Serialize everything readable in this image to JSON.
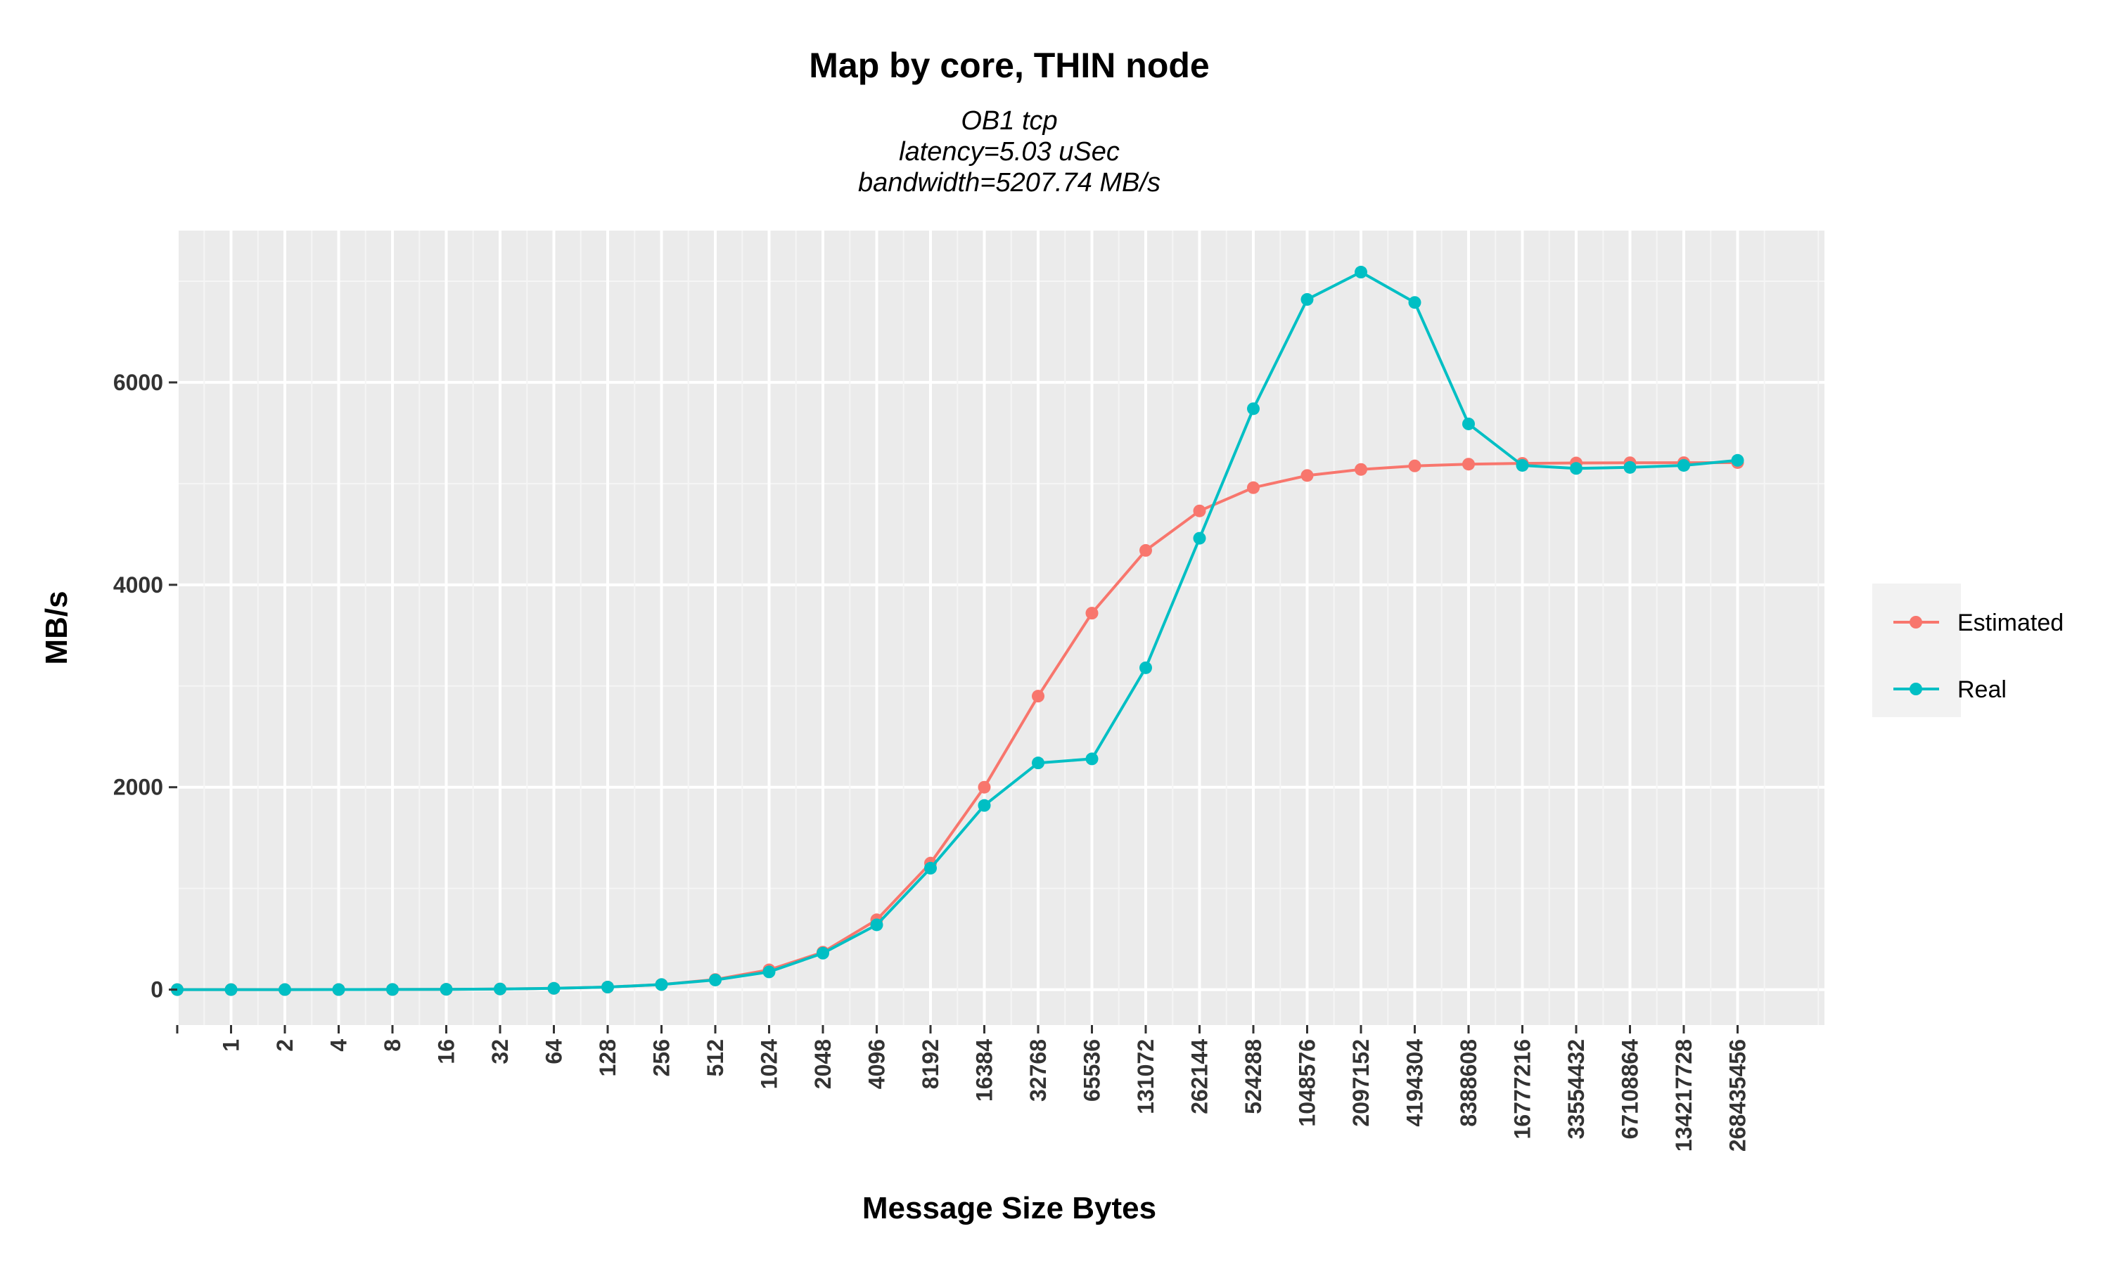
{
  "chart_data": {
    "type": "line",
    "title": "Map by core, THIN node",
    "subtitle_lines": [
      "OB1 tcp",
      "latency=5.03 uSec",
      "bandwidth=5207.74 MB/s"
    ],
    "xlabel": "Message Size Bytes",
    "ylabel": "MB/s",
    "x_axis_type": "categorical (message sizes, log2 spaced)",
    "categories": [
      "",
      "1",
      "2",
      "4",
      "8",
      "16",
      "32",
      "64",
      "128",
      "256",
      "512",
      "1024",
      "2048",
      "4096",
      "8192",
      "16384",
      "32768",
      "65536",
      "131072",
      "262144",
      "524288",
      "1048576",
      "2097152",
      "4194304",
      "8388608",
      "16777216",
      "33554432",
      "67108864",
      "134217728",
      "268435456"
    ],
    "yticks": [
      0,
      2000,
      4000,
      6000
    ],
    "ylim": [
      -350,
      7500
    ],
    "grid": true,
    "legend_position": "right",
    "series": [
      {
        "name": "Estimated",
        "color": "#F8766D",
        "values": [
          0,
          0.2,
          0.4,
          0.8,
          1.6,
          3.2,
          6.4,
          12.7,
          25,
          50,
          100,
          195,
          370,
          690,
          1250,
          2000,
          2900,
          3720,
          4340,
          4730,
          4960,
          5080,
          5140,
          5175,
          5192,
          5200,
          5204,
          5206,
          5207,
          5207.7
        ]
      },
      {
        "name": "Real",
        "color": "#00BFC4",
        "values": [
          0,
          0.2,
          0.4,
          0.8,
          1.6,
          3.2,
          6.4,
          12.7,
          25,
          50,
          95,
          175,
          360,
          640,
          1200,
          1820,
          2240,
          2280,
          3180,
          4460,
          5740,
          6820,
          7090,
          6790,
          5590,
          5180,
          5150,
          5160,
          5180,
          5230
        ]
      }
    ]
  }
}
